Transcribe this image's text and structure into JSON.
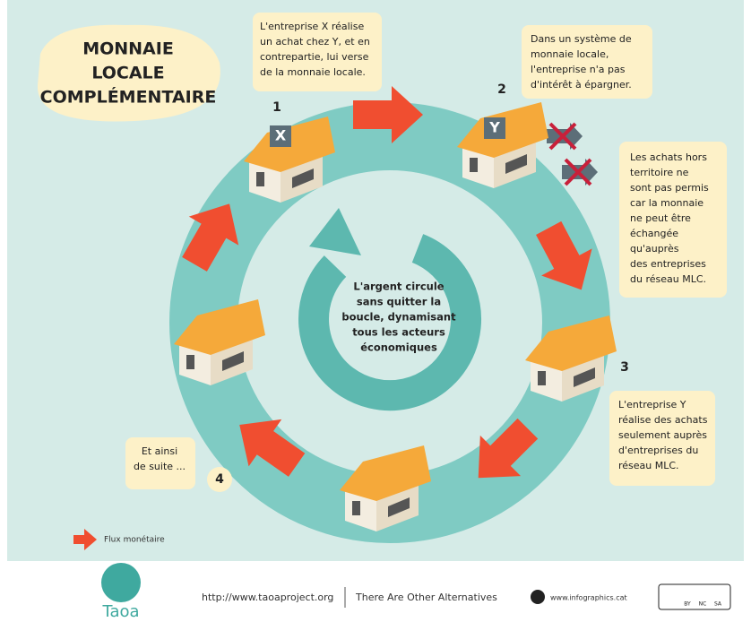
{
  "title_lines": [
    "MONNAIE",
    "LOCALE",
    "COMPLÉMENTAIRE"
  ],
  "step_numbers": [
    "1",
    "2",
    "3",
    "4"
  ],
  "house_labels": [
    "X",
    "Y"
  ],
  "callouts": [
    {
      "lines": [
        "L'entreprise X réalise",
        "un achat chez Y, et en",
        "contrepartie, lui verse",
        "de la monnaie locale."
      ]
    },
    {
      "lines": [
        "Dans un système de",
        "monnaie locale,",
        "l'entreprise n'a pas",
        "d'intérêt à épargner."
      ]
    },
    {
      "lines": [
        "Les achats hors",
        "territoire ne",
        "sont pas permis",
        "car la monnaie",
        "ne peut être",
        "échangée",
        "qu'auprès",
        "des entreprises",
        "du réseau MLC."
      ]
    },
    {
      "lines": [
        "L'entreprise Y",
        "réalise des achats",
        "seulement auprès",
        "d'entreprises du",
        "réseau MLC."
      ]
    },
    {
      "lines": [
        "Et ainsi",
        "de suite ..."
      ]
    }
  ],
  "center_text": [
    "L'argent circule",
    "sans quitter la",
    "boucle, dynamisant",
    "tous les acteurs",
    "économiques"
  ],
  "legend": "Flux monétaire",
  "footer": {
    "logo": "Taoa",
    "url": "http://www.taoaproject.org",
    "tagline": "There Are Other Alternatives",
    "site": "www.infographics.cat",
    "license": [
      "BY",
      "NC",
      "SA"
    ]
  }
}
